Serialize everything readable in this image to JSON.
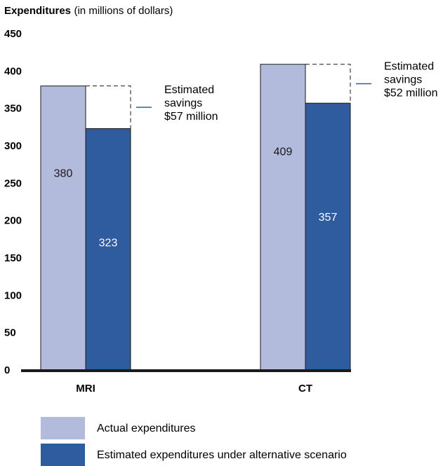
{
  "chart_data": {
    "type": "bar",
    "ylabel": "Expenditures",
    "ylabel_unit": "(in millions of dollars)",
    "ylim": [
      0,
      450
    ],
    "yticks": [
      0,
      50,
      100,
      150,
      200,
      250,
      300,
      350,
      400,
      450
    ],
    "categories": [
      "MRI",
      "CT"
    ],
    "series": [
      {
        "name": "Actual expenditures",
        "values": [
          380,
          409
        ],
        "color": "#b3bbdc"
      },
      {
        "name": "Estimated expenditures under alternative scenario",
        "values": [
          323,
          357
        ],
        "color": "#2f5c9e"
      }
    ],
    "annotations": [
      {
        "category": "MRI",
        "lines": [
          "Estimated",
          "savings",
          "$57 million"
        ]
      },
      {
        "category": "CT",
        "lines": [
          "Estimated",
          "savings",
          "$52 million"
        ]
      }
    ],
    "grid": false,
    "legend_position": "bottom-left"
  }
}
